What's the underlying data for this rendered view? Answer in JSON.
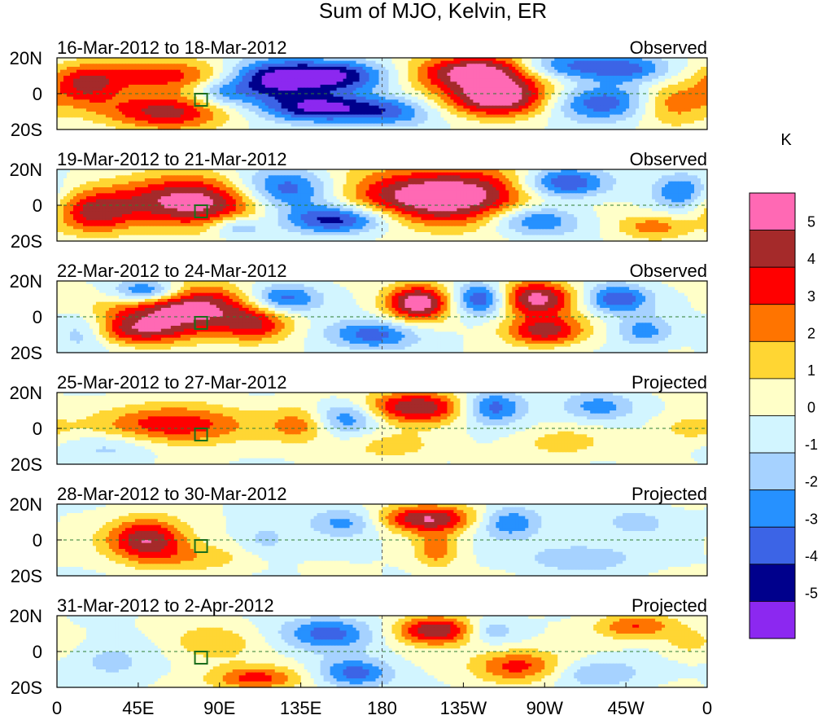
{
  "chart_data": {
    "type": "heatmap",
    "title": "Sum of MJO, Kelvin, ER",
    "colorbar": {
      "unit": "K",
      "tick_labels": [
        "5",
        "4",
        "3",
        "2",
        "1",
        "0",
        "-1",
        "-2",
        "-3",
        "-4",
        "-5"
      ],
      "colors": [
        "#ff69b4",
        "#a52a2a",
        "#ff0000",
        "#ff7400",
        "#ffd633",
        "#ffffc8",
        "#d2f5ff",
        "#a6d2ff",
        "#2691ff",
        "#3c64e6",
        "#00008c",
        "#8c28f0"
      ]
    },
    "x_tick_labels": [
      "0",
      "45E",
      "90E",
      "135E",
      "180",
      "135W",
      "90W",
      "45W",
      "0"
    ],
    "y_tick_labels": [
      "20N",
      "0",
      "20S"
    ],
    "xlim": [
      0,
      360
    ],
    "ylim": [
      -20,
      20
    ],
    "panels": [
      {
        "date_range": "16-Mar-2012 to 18-Mar-2012",
        "kind": "Observed",
        "blobs": [
          [
            235,
            12,
            40,
            10,
            6.0
          ],
          [
            245,
            -3,
            30,
            10,
            6.0
          ],
          [
            150,
            10,
            35,
            9,
            -5.5
          ],
          [
            145,
            -8,
            30,
            8,
            -5.0
          ],
          [
            115,
            6,
            25,
            12,
            -4.0
          ],
          [
            60,
            10,
            40,
            9,
            3.5
          ],
          [
            60,
            -10,
            35,
            10,
            4.5
          ],
          [
            15,
            5,
            20,
            12,
            3.5
          ],
          [
            300,
            -5,
            30,
            10,
            -4.0
          ],
          [
            315,
            14,
            25,
            8,
            -3.5
          ],
          [
            340,
            -5,
            20,
            12,
            3.0
          ],
          [
            185,
            -10,
            25,
            8,
            -3.0
          ],
          [
            275,
            15,
            25,
            8,
            -4.0
          ],
          [
            90,
            0,
            15,
            8,
            -2.0
          ]
        ]
      },
      {
        "date_range": "19-Mar-2012 to 21-Mar-2012",
        "kind": "Observed",
        "blobs": [
          [
            215,
            5,
            55,
            16,
            6.5
          ],
          [
            75,
            2,
            45,
            14,
            6.0
          ],
          [
            125,
            8,
            28,
            12,
            -5.0
          ],
          [
            155,
            -8,
            30,
            8,
            -5.0
          ],
          [
            280,
            12,
            25,
            9,
            -5.0
          ],
          [
            265,
            -8,
            25,
            9,
            -4.0
          ],
          [
            20,
            -5,
            20,
            12,
            3.5
          ],
          [
            330,
            -12,
            20,
            7,
            2.5
          ],
          [
            345,
            8,
            15,
            10,
            -3.0
          ],
          [
            100,
            -12,
            15,
            6,
            -2.5
          ]
        ]
      },
      {
        "date_range": "22-Mar-2012 to 24-Mar-2012",
        "kind": "Observed",
        "blobs": [
          [
            70,
            5,
            40,
            13,
            6.0
          ],
          [
            45,
            -8,
            30,
            8,
            3.5
          ],
          [
            110,
            -5,
            20,
            10,
            3.0
          ],
          [
            200,
            8,
            18,
            10,
            6.0
          ],
          [
            265,
            10,
            22,
            10,
            5.5
          ],
          [
            270,
            -8,
            22,
            8,
            4.5
          ],
          [
            50,
            14,
            20,
            7,
            -5.0
          ],
          [
            125,
            10,
            20,
            8,
            -4.0
          ],
          [
            175,
            -10,
            25,
            8,
            -3.5
          ],
          [
            235,
            10,
            15,
            9,
            -4.5
          ],
          [
            310,
            10,
            18,
            8,
            -4.0
          ],
          [
            15,
            -8,
            15,
            10,
            -2.5
          ],
          [
            325,
            -8,
            15,
            8,
            -2.5
          ]
        ]
      },
      {
        "date_range": "25-Mar-2012 to 27-Mar-2012",
        "kind": "Projected",
        "blobs": [
          [
            65,
            2,
            40,
            11,
            4.0
          ],
          [
            200,
            12,
            30,
            9,
            5.0
          ],
          [
            135,
            2,
            18,
            10,
            2.5
          ],
          [
            240,
            12,
            18,
            9,
            -4.0
          ],
          [
            160,
            6,
            18,
            9,
            -3.0
          ],
          [
            300,
            12,
            20,
            8,
            -2.5
          ],
          [
            30,
            -10,
            25,
            8,
            -1.5
          ],
          [
            185,
            -10,
            25,
            8,
            1.5
          ],
          [
            280,
            -8,
            25,
            8,
            1.5
          ],
          [
            350,
            0,
            18,
            8,
            1.5
          ]
        ]
      },
      {
        "date_range": "28-Mar-2012 to 30-Mar-2012",
        "kind": "Projected",
        "blobs": [
          [
            50,
            0,
            22,
            12,
            5.0
          ],
          [
            205,
            12,
            28,
            8,
            5.0
          ],
          [
            210,
            -6,
            12,
            10,
            2.5
          ],
          [
            250,
            10,
            18,
            9,
            -3.0
          ],
          [
            160,
            10,
            20,
            8,
            -2.5
          ],
          [
            80,
            -10,
            30,
            8,
            1.5
          ],
          [
            290,
            -10,
            30,
            8,
            -2.0
          ],
          [
            320,
            10,
            20,
            8,
            -1.5
          ],
          [
            115,
            0,
            15,
            10,
            -1.5
          ]
        ]
      },
      {
        "date_range": "31-Mar-2012 to 2-Apr-2012",
        "kind": "Projected",
        "blobs": [
          [
            210,
            12,
            22,
            8,
            5.0
          ],
          [
            255,
            -8,
            25,
            9,
            3.5
          ],
          [
            150,
            10,
            25,
            9,
            -3.5
          ],
          [
            165,
            -12,
            20,
            8,
            -3.5
          ],
          [
            110,
            -15,
            25,
            7,
            3.5
          ],
          [
            85,
            5,
            22,
            10,
            2.0
          ],
          [
            320,
            14,
            22,
            7,
            3.0
          ],
          [
            300,
            -12,
            25,
            8,
            -2.0
          ],
          [
            240,
            12,
            15,
            7,
            -2.0
          ],
          [
            30,
            -5,
            20,
            10,
            -1.5
          ],
          [
            350,
            5,
            15,
            8,
            1.5
          ]
        ]
      }
    ]
  }
}
